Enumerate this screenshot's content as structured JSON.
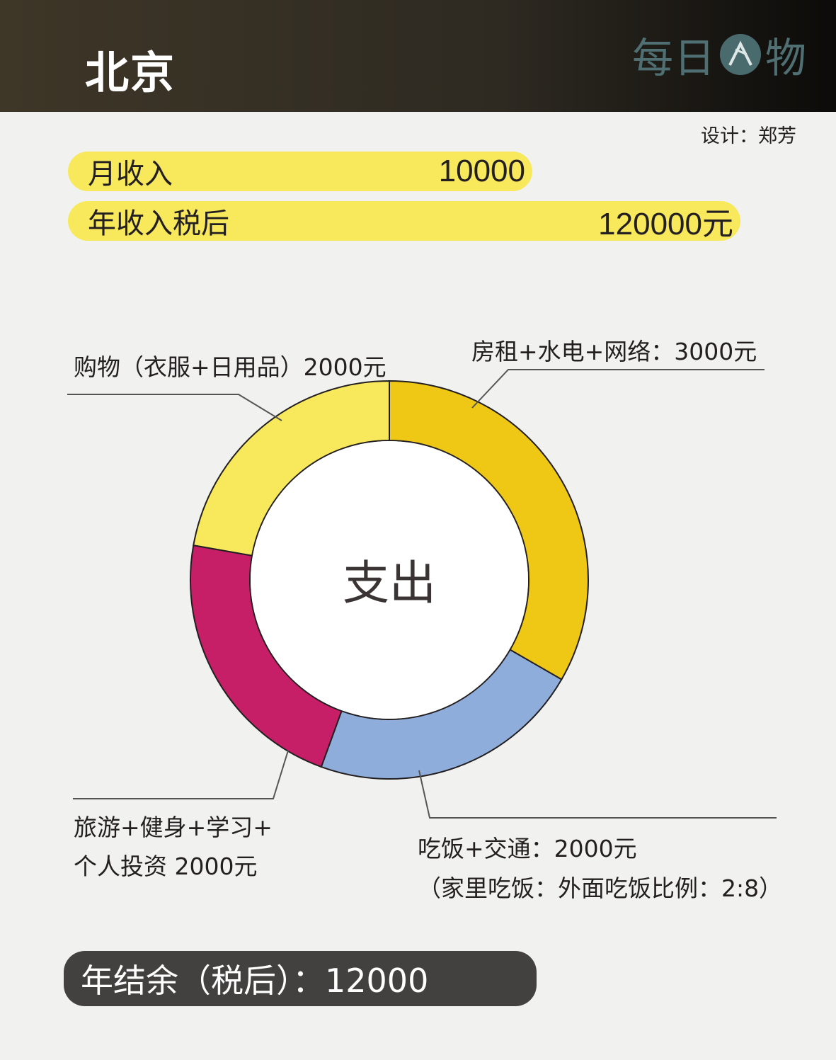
{
  "header": {
    "city": "北京",
    "logo_left": "每日",
    "logo_right": "物"
  },
  "designer": "设计：郑芳",
  "income": {
    "monthly_label": "月收入",
    "monthly_value": "10000",
    "annual_label": "年收入税后",
    "annual_value": "120000元"
  },
  "chart_data": {
    "type": "pie",
    "title": "支出",
    "categories": [
      "房租+水电+网络",
      "吃饭+交通",
      "旅游+健身+学习+个人投资",
      "购物（衣服+日用品）"
    ],
    "values": [
      3000,
      2000,
      2000,
      2000
    ],
    "unit": "元",
    "colors": [
      "#efc815",
      "#8fadda",
      "#c61f68",
      "#f7e85c"
    ],
    "labels": {
      "rent": "房租+水电+网络：3000元",
      "food_line1": "吃饭+交通：2000元",
      "food_line2": "（家里吃饭：外面吃饭比例：2:8）",
      "travel_line1": "旅游+健身+学习+",
      "travel_line2": "个人投资 2000元",
      "shopping": "购物（衣服+日用品）2000元"
    }
  },
  "balance": "年结余（税后）：12000"
}
